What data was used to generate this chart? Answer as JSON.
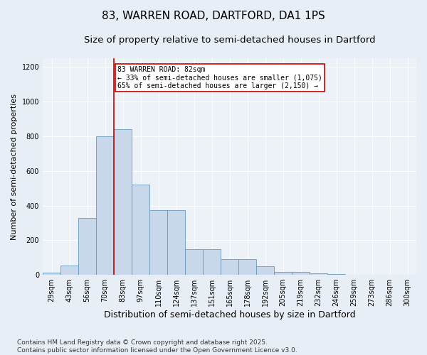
{
  "title": "83, WARREN ROAD, DARTFORD, DA1 1PS",
  "subtitle": "Size of property relative to semi-detached houses in Dartford",
  "xlabel": "Distribution of semi-detached houses by size in Dartford",
  "ylabel": "Number of semi-detached properties",
  "bins": [
    "29sqm",
    "43sqm",
    "56sqm",
    "70sqm",
    "83sqm",
    "97sqm",
    "110sqm",
    "124sqm",
    "137sqm",
    "151sqm",
    "165sqm",
    "178sqm",
    "192sqm",
    "205sqm",
    "219sqm",
    "232sqm",
    "246sqm",
    "259sqm",
    "273sqm",
    "286sqm",
    "300sqm"
  ],
  "values": [
    15,
    55,
    330,
    800,
    840,
    520,
    375,
    375,
    150,
    150,
    90,
    90,
    50,
    18,
    18,
    8,
    4,
    2,
    1,
    1,
    0
  ],
  "bar_color": "#c8d8ea",
  "bar_edge_color": "#6699bb",
  "vline_x_index": 4,
  "vline_color": "#cc0000",
  "annotation_text": "83 WARREN ROAD: 82sqm\n← 33% of semi-detached houses are smaller (1,075)\n65% of semi-detached houses are larger (2,150) →",
  "annotation_box_color": "#ffffff",
  "annotation_box_edge": "#cc0000",
  "ylim": [
    0,
    1250
  ],
  "yticks": [
    0,
    200,
    400,
    600,
    800,
    1000,
    1200
  ],
  "background_color": "#e8eef5",
  "plot_bg_color": "#edf2f8",
  "grid_color": "#ffffff",
  "footer": "Contains HM Land Registry data © Crown copyright and database right 2025.\nContains public sector information licensed under the Open Government Licence v3.0.",
  "title_fontsize": 11,
  "subtitle_fontsize": 9.5,
  "xlabel_fontsize": 9,
  "ylabel_fontsize": 8,
  "tick_fontsize": 7,
  "footer_fontsize": 6.5,
  "annotation_fontsize": 7
}
